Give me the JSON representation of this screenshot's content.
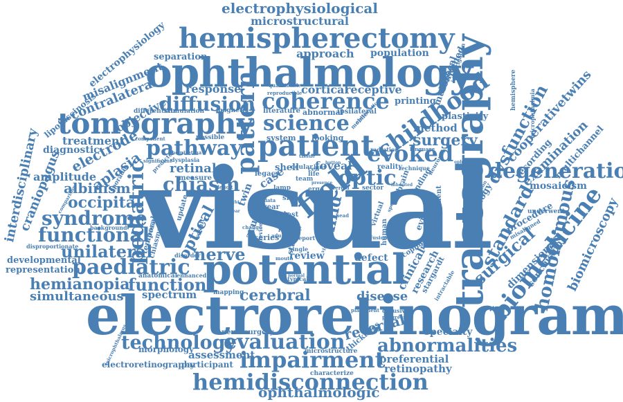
{
  "color": "#4a7fb3",
  "words": {
    "visual": "visual",
    "electroretinogram": "electroretinogram",
    "ophthalmology": "ophthalmology",
    "potential": "potential",
    "tractography": "tractography",
    "hemispherectomy": "hemispherectomy",
    "tomography": "tomography",
    "patient": "patient",
    "hemidisconnection": "hemidisconnection",
    "impairment": "impairment",
    "evaluation": "evaluation",
    "technology": "technology",
    "abnormalities": "abnormalities",
    "degeneration": "degeneration",
    "biomedicine": "biomedicine",
    "paediatric": "paediatric",
    "childhood": "childhood",
    "coherence": "coherence",
    "science": "science",
    "pathway": "pathway",
    "field": "field",
    "pattern": "pattern",
    "evoked": "evoked",
    "chiasm": "chiasm",
    "diffusion": "diffusion",
    "pediatric": "pediatric",
    "syndrome": "syndrome",
    "functional": "functional",
    "unilateral": "unilateral",
    "hemianopia": "hemianopia",
    "function": "function",
    "cerebral": "cerebral",
    "simultaneous": "simultaneous",
    "electrophysiological": "electrophysiological",
    "microstructural": "microstructural",
    "ophthalmologic": "ophthalmologic",
    "optic": "optic",
    "nerve": "nerve",
    "homonymous": "homonymous",
    "surgical": "surgical",
    "standard": "standard",
    "dysfunction": "dysfunction",
    "examination": "examination",
    "optical": "optical",
    "occipital": "occipital",
    "albinism": "albinism",
    "aplasia": "aplasia",
    "electrode": "electrode",
    "craniopagus": "craniopagus",
    "interdisciplinary": "interdisciplinary",
    "contralateral": "contralateral",
    "misalignment": "misalignment",
    "electrophysiology": "electrophysiology",
    "lipofuscinosis": "lipofuscinosis",
    "objective": "objective",
    "treatment": "treatment",
    "amplitude": "amplitude",
    "diagnostic": "diagnostic",
    "response": "response",
    "cortical": "cortical",
    "receptive": "receptive",
    "approach": "approach",
    "population": "population",
    "separation": "separation",
    "surgery": "surgery",
    "method": "method",
    "plasticity": "plasticity",
    "printing": "printing",
    "multifocal": "multifocal",
    "conjoined": "conjoined",
    "cooperativetwins": "cooperativetwins",
    "biomicroscopy": "biomicroscopy",
    "multichannel": "multichannel",
    "mosaicism": "mosaicism",
    "recording": "recording",
    "radiology": "radiology",
    "procedure": "procedure",
    "conclusion": "conclusion",
    "dimensional": "dimensional",
    "research": "research",
    "clinical": "clinical",
    "child": "child",
    "vision": "vision",
    "review": "review",
    "defect": "defect",
    "disease": "disease",
    "spectrum": "spectrum",
    "reversal": "reversal",
    "retinopathy": "retinopathy",
    "preferential": "preferential",
    "assessment": "assessment",
    "specialty": "specialty",
    "neurosurgery": "neurosurgery",
    "morphology": "morphology",
    "electroretinography": "electroretinography",
    "participant": "participant",
    "developmental": "developmental",
    "representation": "representation",
    "retinal": "retinal",
    "foveal": "foveal",
    "system": "system",
    "looking": "looking",
    "literature": "literature",
    "abnormal": "abnormal",
    "ipsilateral": "ipsilateral",
    "magnetic": "magnetic",
    "possible": "possible",
    "differentiate": "differentiate",
    "stimulation": "stimulation",
    "shell": "shell",
    "case": "case",
    "legacy": "legacy",
    "reality": "reality",
    "finding": "finding",
    "development": "development",
    "underwent": "underwent",
    "evidence": "evidence",
    "radiologic": "radiologic",
    "stargardt": "stargardt",
    "anatomical": "anatomical",
    "mapping": "mapping",
    "acuity": "acuity",
    "twin": "twin",
    "study": "study",
    "series": "series",
    "thickness": "thickness",
    "microstructure": "microstructure",
    "characterize": "characterize",
    "background": "background",
    "disproportionate": "disproportionate",
    "update": "update",
    "measure": "measure",
    "resonance": "resonance",
    "temporal": "temporal",
    "chiasmal": "chiasmal",
    "enhanced": "enhanced",
    "human": "human",
    "scoping": "scoping",
    "hemisphere": "hemisphere",
    "microphthalmia": "microphthalmia",
    "misaligned": "misaligned",
    "sporadic": "sporadic",
    "lamp": "lamp",
    "skin": "skin",
    "year": "year",
    "test": "test",
    "hair": "hair",
    "brain": "brain",
    "virtual": "virtual",
    "sector": "sector",
    "radiation": "radiation",
    "technique": "technique",
    "investigation": "investigation",
    "quantifiable": "quantifiable",
    "reproducible": "reproducible",
    "dysplasia": "dysplasia",
    "predictor": "predictor",
    "component": "component",
    "comparison": "comparison",
    "diffusivity": "diffusivity",
    "intractable": "intractable",
    "microphthalmus": "microphthalmus",
    "single": "single",
    "disorder": "disorder",
    "neuronal": "neuronal",
    "distribution": "distribution",
    "atypical": "atypical",
    "visible": "visible",
    "present": "present",
    "mobile": "mobile",
    "systematic": "systematic",
    "ocular": "ocular",
    "report": "report",
    "life": "life",
    "deficit": "deficit",
    "change": "change",
    "virtual2": "virtual",
    "language": "language",
    "progressive": "progressive",
    "significant": "significant",
    "hemiretina": "hemiretina",
    "ceroid": "ceroid",
    "placement": "placement",
    "specific": "specific",
    "erg": "erg",
    "cell": "cell",
    "team": "team",
    "data": "data",
    "lens": "lens",
    "device": "device",
    "adult": "adult",
    "mouth": "mouth",
    "head": "head",
    "fold": "fold",
    "result": "result",
    "fusion": "fusion",
    "ophthalmic": "ophthalmic",
    "tissue": "tissue",
    "better": "better",
    "inherited": "inherited",
    "light": "light",
    "normal": "normal",
    "presence": "presence",
    "clear": "clear",
    "button": "button"
  }
}
